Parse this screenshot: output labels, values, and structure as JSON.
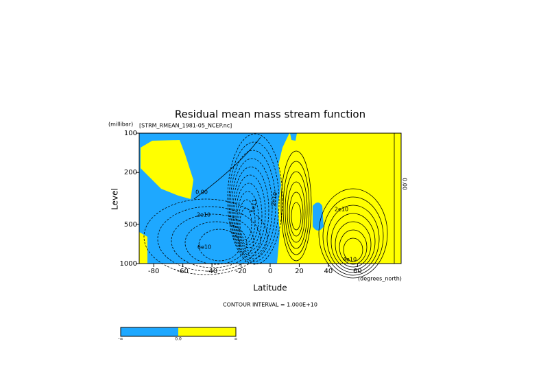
{
  "chart_data": {
    "type": "contour",
    "title": "Residual mean mass stream function",
    "subtitle": "[STRM_RMEAN_1981-05_NCEP.nc]",
    "y_unit": "(millibar)",
    "x_label": "Latitude",
    "x_unit": "(degrees_north)",
    "y_label": "Level",
    "note": "CONTOUR INTERVAL = 1.000E+10",
    "xlim": [
      -90,
      90
    ],
    "xticks": [
      -80,
      -60,
      -40,
      -20,
      0,
      20,
      40,
      60
    ],
    "ylim": [
      100,
      1000
    ],
    "yticks": [
      100,
      200,
      500,
      1000
    ],
    "yscale": "log",
    "yreverse": true,
    "colors": [
      "#1ea8ff",
      "#ffff00"
    ],
    "colorbar_labels": [
      "-∞",
      "0.0",
      "∞"
    ],
    "contour_labels": [
      "0.00",
      "2e10",
      "6e10",
      "1e11",
      "2e10",
      "2e10",
      "4e10",
      "0.00"
    ]
  }
}
